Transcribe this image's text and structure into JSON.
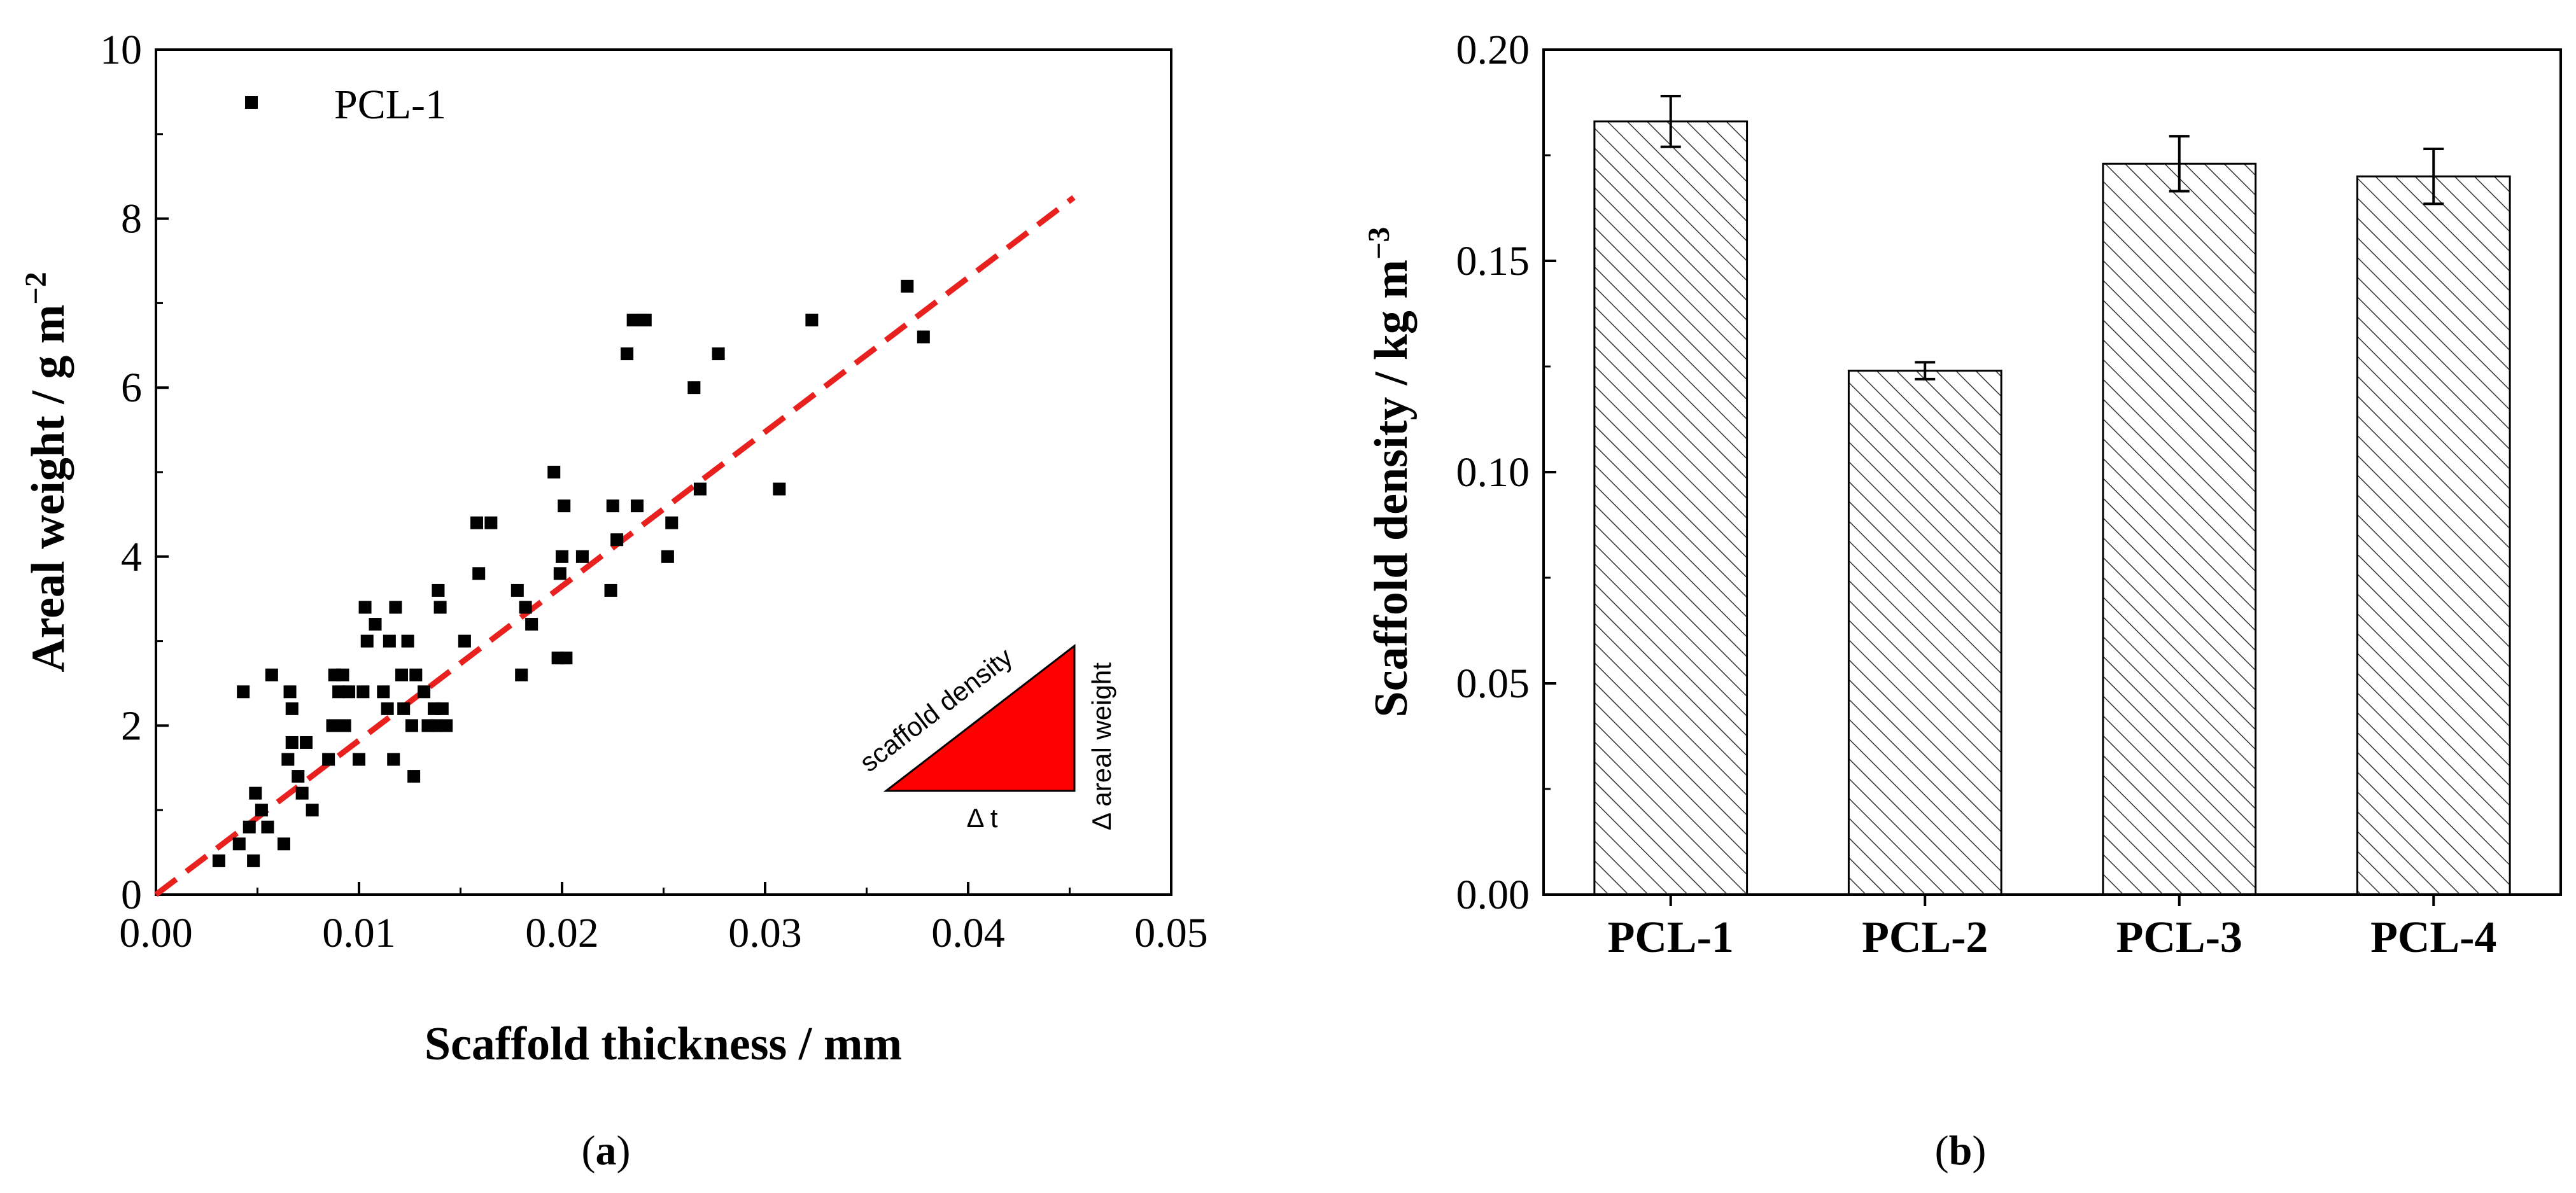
{
  "chart_data": [
    {
      "type": "scatter",
      "panel_label": "(a)",
      "xlabel": "Scaffold thickness  /  mm",
      "ylabel": "Areal weight  /  g m",
      "ylabel_exp": "−2",
      "xlim": [
        0,
        0.05
      ],
      "ylim": [
        0,
        10
      ],
      "xticks": [
        0.0,
        0.01,
        0.02,
        0.03,
        0.04,
        0.05
      ],
      "xtick_labels": [
        "0.00",
        "0.01",
        "0.02",
        "0.03",
        "0.04",
        "0.05"
      ],
      "yticks": [
        0,
        2,
        4,
        6,
        8,
        10
      ],
      "ytick_labels": [
        "0",
        "2",
        "4",
        "6",
        "8",
        "10"
      ],
      "legend": [
        {
          "name": "PCL-1",
          "marker": "square",
          "color": "#000000"
        }
      ],
      "legend_position": "top-left",
      "series": [
        {
          "name": "PCL-1",
          "points": [
            [
              0.0031,
              0.4
            ],
            [
              0.0041,
              0.6
            ],
            [
              0.0043,
              2.4
            ],
            [
              0.0046,
              0.8
            ],
            [
              0.0048,
              0.4
            ],
            [
              0.0049,
              1.2
            ],
            [
              0.0052,
              1.0
            ],
            [
              0.0055,
              0.8
            ],
            [
              0.0057,
              2.6
            ],
            [
              0.0063,
              0.6
            ],
            [
              0.0065,
              1.6
            ],
            [
              0.0066,
              2.4
            ],
            [
              0.0067,
              1.8
            ],
            [
              0.0067,
              2.2
            ],
            [
              0.007,
              1.4
            ],
            [
              0.0072,
              1.2
            ],
            [
              0.0074,
              1.8
            ],
            [
              0.0077,
              1.0
            ],
            [
              0.0085,
              1.6
            ],
            [
              0.0087,
              2.0
            ],
            [
              0.0088,
              2.6
            ],
            [
              0.009,
              2.4
            ],
            [
              0.0092,
              2.6
            ],
            [
              0.0093,
              2.0
            ],
            [
              0.0095,
              2.4
            ],
            [
              0.01,
              1.6
            ],
            [
              0.0102,
              2.4
            ],
            [
              0.0103,
              3.4
            ],
            [
              0.0104,
              3.0
            ],
            [
              0.0108,
              3.2
            ],
            [
              0.0112,
              2.4
            ],
            [
              0.0114,
              2.2
            ],
            [
              0.0115,
              3.0
            ],
            [
              0.0117,
              1.6
            ],
            [
              0.0118,
              3.4
            ],
            [
              0.0121,
              2.6
            ],
            [
              0.0122,
              2.2
            ],
            [
              0.0124,
              3.0
            ],
            [
              0.0126,
              2.0
            ],
            [
              0.0127,
              1.4
            ],
            [
              0.0128,
              2.6
            ],
            [
              0.0132,
              2.4
            ],
            [
              0.0134,
              2.0
            ],
            [
              0.0137,
              2.2
            ],
            [
              0.0138,
              2.0
            ],
            [
              0.0139,
              3.6
            ],
            [
              0.014,
              3.4
            ],
            [
              0.0141,
              2.2
            ],
            [
              0.0143,
              2.0
            ],
            [
              0.0152,
              3.0
            ],
            [
              0.0158,
              4.4
            ],
            [
              0.0159,
              3.8
            ],
            [
              0.0165,
              4.4
            ],
            [
              0.0178,
              3.6
            ],
            [
              0.018,
              2.6
            ],
            [
              0.0182,
              3.4
            ],
            [
              0.0185,
              3.2
            ],
            [
              0.0196,
              5.0
            ],
            [
              0.0198,
              2.8
            ],
            [
              0.0199,
              3.8
            ],
            [
              0.02,
              4.0
            ],
            [
              0.0201,
              4.6
            ],
            [
              0.0202,
              2.8
            ],
            [
              0.021,
              4.0
            ],
            [
              0.0224,
              3.6
            ],
            [
              0.0225,
              4.6
            ],
            [
              0.0227,
              4.2
            ],
            [
              0.0232,
              6.4
            ],
            [
              0.0235,
              6.8
            ],
            [
              0.0237,
              4.6
            ],
            [
              0.0239,
              6.8
            ],
            [
              0.0241,
              6.8
            ],
            [
              0.0252,
              4.0
            ],
            [
              0.0254,
              4.4
            ],
            [
              0.0265,
              6.0
            ],
            [
              0.0268,
              4.8
            ],
            [
              0.0277,
              6.4
            ],
            [
              0.0307,
              4.8
            ],
            [
              0.0323,
              6.8
            ],
            [
              0.037,
              7.2
            ],
            [
              0.0378,
              6.6
            ]
          ]
        }
      ],
      "fit_line": {
        "x": [
          0,
          0.0452
        ],
        "y": [
          0,
          8.25
        ],
        "style": "dashed",
        "color": "#e8201e"
      },
      "inset": {
        "label_hyp": "scaffold density",
        "label_base": "Δ t",
        "label_side": "Δ areal weight",
        "fill": "#ff0000"
      }
    },
    {
      "type": "bar",
      "panel_label": "(b)",
      "xlabel": "",
      "ylabel": "Scaffold density  /  kg m",
      "ylabel_exp": "−3",
      "categories": [
        "PCL-1",
        "PCL-2",
        "PCL-3",
        "PCL-4"
      ],
      "values": [
        0.183,
        0.124,
        0.173,
        0.17
      ],
      "errors": [
        0.006,
        0.002,
        0.0065,
        0.0065
      ],
      "ylim": [
        0,
        0.2
      ],
      "yticks": [
        0,
        0.05,
        0.1,
        0.15,
        0.2
      ],
      "ytick_labels": [
        "0.00",
        "0.05",
        "0.10",
        "0.15",
        "0.20"
      ],
      "bar_fill": "hatched",
      "bar_color": "#000000"
    }
  ]
}
